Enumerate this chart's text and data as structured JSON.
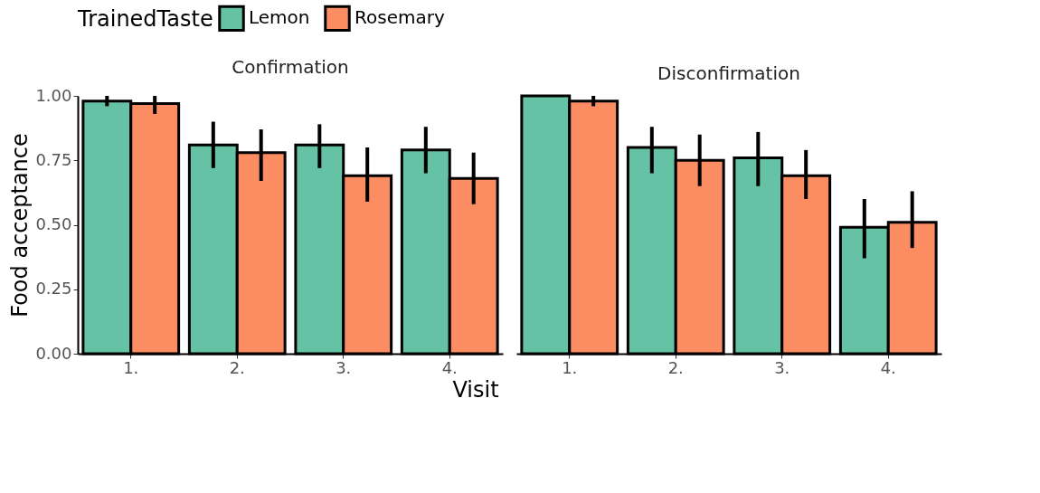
{
  "chart_data": [
    {
      "type": "bar",
      "title": "Confirmation",
      "xlabel": "Visit",
      "ylabel": "Food acceptance",
      "legend_title": "TrainedTaste",
      "legend": "top",
      "grid": false,
      "categories": [
        "1.",
        "2.",
        "3.",
        "4."
      ],
      "ylim": [
        0,
        1
      ],
      "yticks": [
        {
          "value": 0,
          "label": "0.00"
        },
        {
          "value": 0.25,
          "label": "0.25"
        },
        {
          "value": 0.5,
          "label": "0.50"
        },
        {
          "value": 0.75,
          "label": "0.75"
        },
        {
          "value": 1,
          "label": "1.00"
        }
      ],
      "series": [
        {
          "name": "Lemon",
          "color": "#66c2a5",
          "values": [
            0.98,
            0.81,
            0.81,
            0.79
          ],
          "errors": [
            [
              0.96,
              1.0
            ],
            [
              0.72,
              0.9
            ],
            [
              0.72,
              0.89
            ],
            [
              0.7,
              0.88
            ]
          ]
        },
        {
          "name": "Rosemary",
          "color": "#fc8d62",
          "values": [
            0.97,
            0.78,
            0.69,
            0.68
          ],
          "errors": [
            [
              0.93,
              1.0
            ],
            [
              0.67,
              0.87
            ],
            [
              0.59,
              0.8
            ],
            [
              0.58,
              0.78
            ]
          ]
        }
      ]
    },
    {
      "type": "bar",
      "title": "Disconfirmation",
      "tick_labels": "x",
      "grid": false,
      "categories": [
        "1.",
        "2.",
        "3.",
        "4."
      ],
      "ylim": [
        0,
        1
      ],
      "series": [
        {
          "name": "Lemon",
          "color": "#66c2a5",
          "values": [
            1.0,
            0.8,
            0.76,
            0.49
          ],
          "errors": [
            [
              1.0,
              1.0
            ],
            [
              0.7,
              0.88
            ],
            [
              0.65,
              0.86
            ],
            [
              0.37,
              0.6
            ]
          ]
        },
        {
          "name": "Rosemary",
          "color": "#fc8d62",
          "values": [
            0.98,
            0.75,
            0.69,
            0.51
          ],
          "errors": [
            [
              0.96,
              1.0
            ],
            [
              0.65,
              0.85
            ],
            [
              0.6,
              0.79
            ],
            [
              0.41,
              0.63
            ]
          ]
        }
      ]
    }
  ]
}
